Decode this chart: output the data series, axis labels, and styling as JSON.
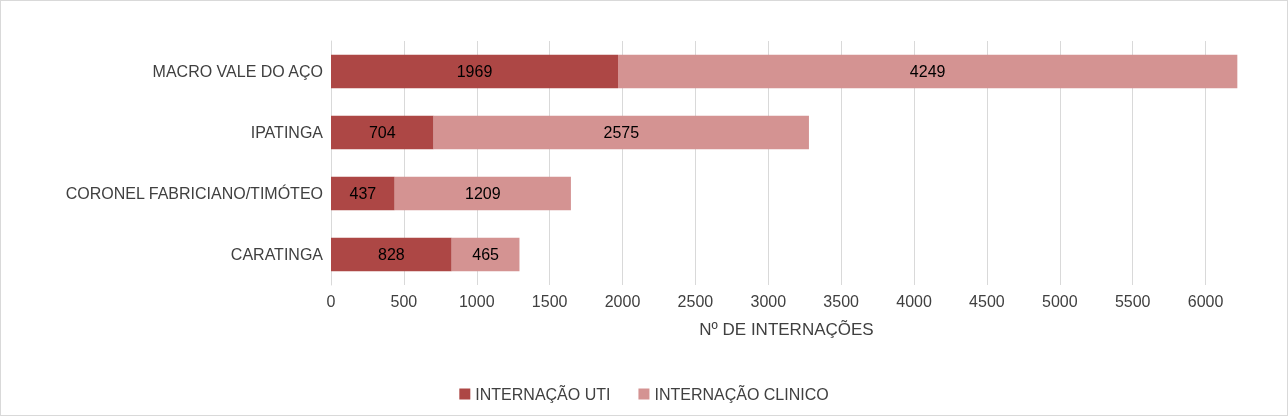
{
  "chart_data": {
    "type": "bar",
    "orientation": "horizontal",
    "stacked": true,
    "categories": [
      "MACRO VALE DO AÇO",
      "IPATINGA",
      "CORONEL FABRICIANO/TIMÓTEO",
      "CARATINGA"
    ],
    "series": [
      {
        "name": "INTERNAÇÃO UTI",
        "color": "#ad4745",
        "values": [
          1969,
          704,
          437,
          828
        ]
      },
      {
        "name": "INTERNAÇÃO CLINICO",
        "color": "#d49392",
        "values": [
          4249,
          2575,
          1209,
          465
        ]
      }
    ],
    "xlabel": "Nº DE INTERNAÇÕES",
    "xlim": [
      0,
      6250
    ],
    "xticks": [
      0,
      500,
      1000,
      1500,
      2000,
      2500,
      3000,
      3500,
      4000,
      4500,
      5000,
      5500,
      6000
    ],
    "grid": "x",
    "legend": "bottom",
    "data_labels": true
  }
}
